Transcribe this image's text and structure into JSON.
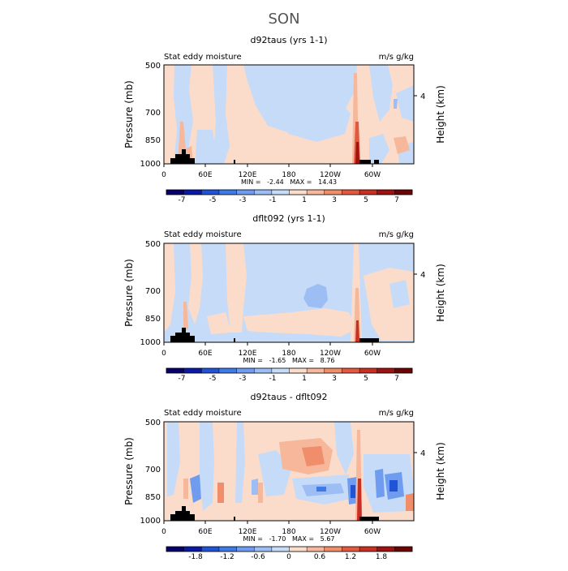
{
  "page_title": "SON",
  "chart_data": [
    {
      "type": "heatmap",
      "title": "d92taus (yrs 1-1)",
      "left_label": "Stat eddy moisture",
      "right_label": "m/s g/kg",
      "ylabel": "Pressure (mb)",
      "ylabel_right": "Height (km)",
      "y_ticks": [
        "500",
        "700",
        "850",
        "1000"
      ],
      "y_ticks_right": [
        "4"
      ],
      "x_ticks": [
        "0",
        "60E",
        "120E",
        "180",
        "120W",
        "60W"
      ],
      "stats": "MIN =   -2.44   MAX =   14.43",
      "colorbar_labels": [
        "-7",
        "-5",
        "-3",
        "-1",
        "1",
        "3",
        "5",
        "7"
      ]
    },
    {
      "type": "heatmap",
      "title": "dflt092 (yrs 1-1)",
      "left_label": "Stat eddy moisture",
      "right_label": "m/s g/kg",
      "ylabel": "Pressure (mb)",
      "ylabel_right": "Height (km)",
      "y_ticks": [
        "500",
        "700",
        "850",
        "1000"
      ],
      "y_ticks_right": [
        "4"
      ],
      "x_ticks": [
        "0",
        "60E",
        "120E",
        "180",
        "120W",
        "60W"
      ],
      "stats": "MIN =   -1.65   MAX =   8.76",
      "colorbar_labels": [
        "-7",
        "-5",
        "-3",
        "-1",
        "1",
        "3",
        "5",
        "7"
      ]
    },
    {
      "type": "heatmap",
      "title": "d92taus - dflt092",
      "left_label": "Stat eddy moisture",
      "right_label": "m/s g/kg",
      "ylabel": "Pressure (mb)",
      "ylabel_right": "Height (km)",
      "y_ticks": [
        "500",
        "700",
        "850",
        "1000"
      ],
      "y_ticks_right": [
        "4"
      ],
      "x_ticks": [
        "0",
        "60E",
        "120E",
        "180",
        "120W",
        "60W"
      ],
      "stats": "MIN =   -1.70   MAX =   5.67",
      "colorbar_labels": [
        "-1.8",
        "-1.2",
        "-0.6",
        "0",
        "0.6",
        "1.2",
        "1.8"
      ]
    }
  ],
  "colors": {
    "palette": [
      "#08006a",
      "#0b1aa6",
      "#2153d6",
      "#3f7ae6",
      "#6f9cef",
      "#9dbdf5",
      "#c6dbf8",
      "#fbdccb",
      "#f7b79a",
      "#f08e6b",
      "#e2593f",
      "#c92f22",
      "#9e1210",
      "#6b0403"
    ]
  }
}
